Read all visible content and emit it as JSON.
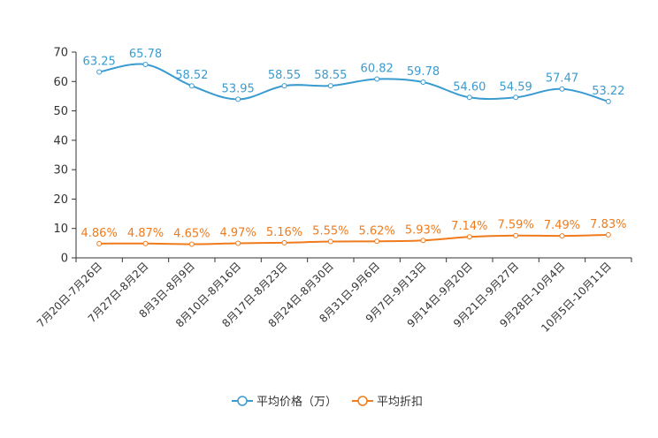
{
  "chart_data": {
    "type": "line",
    "categories": [
      "7月20日-7月26日",
      "7月27日-8月2日",
      "8月3日-8月9日",
      "8月10日-8月16日",
      "8月17日-8月23日",
      "8月24日-8月30日",
      "8月31日-9月6日",
      "9月7日-9月13日",
      "9月14日-9月20日",
      "9月21日-9月27日",
      "9月28日-10月4日",
      "10月5日-10月11日"
    ],
    "series": [
      {
        "name": "平均价格（万）",
        "color": "#3a9bd0",
        "values": [
          63.25,
          65.78,
          58.52,
          53.95,
          58.55,
          58.55,
          60.82,
          59.78,
          54.6,
          54.59,
          57.47,
          53.22
        ],
        "labels": [
          "63.25",
          "65.78",
          "58.52",
          "53.95",
          "58.55",
          "58.55",
          "60.82",
          "59.78",
          "54.60",
          "54.59",
          "57.47",
          "53.22"
        ]
      },
      {
        "name": "平均折扣",
        "color": "#f07b1c",
        "values": [
          4.86,
          4.87,
          4.65,
          4.97,
          5.16,
          5.55,
          5.62,
          5.93,
          7.14,
          7.59,
          7.49,
          7.83
        ],
        "labels": [
          "4.86%",
          "4.87%",
          "4.65%",
          "4.97%",
          "5.16%",
          "5.55%",
          "5.62%",
          "5.93%",
          "7.14%",
          "7.59%",
          "7.49%",
          "7.83%"
        ]
      }
    ],
    "yticks": [
      "0",
      "10",
      "20",
      "30",
      "40",
      "50",
      "60",
      "70"
    ],
    "ylim": [
      0,
      70
    ],
    "title": "",
    "xlabel": "",
    "ylabel": "",
    "legend": "bottom-center"
  }
}
